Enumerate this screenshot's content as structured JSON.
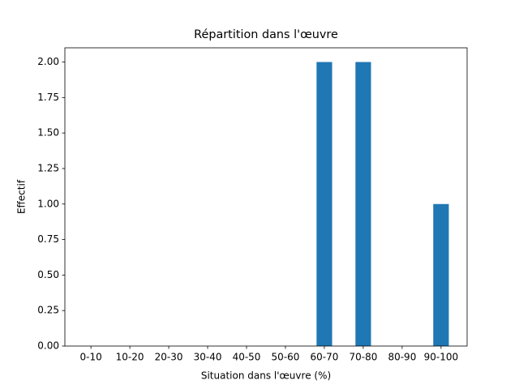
{
  "chart_data": {
    "type": "bar",
    "title": "Répartition dans l'œuvre",
    "xlabel": "Situation dans l'œuvre (%)",
    "ylabel": "Effectif",
    "categories": [
      "0-10",
      "10-20",
      "20-30",
      "30-40",
      "40-50",
      "50-60",
      "60-70",
      "70-80",
      "80-90",
      "90-100"
    ],
    "values": [
      0,
      0,
      0,
      0,
      0,
      0,
      2,
      2,
      0,
      1
    ],
    "color": "#1f77b4",
    "ylim": [
      0,
      2.1
    ],
    "yticks": [
      {
        "value": 0,
        "label": "0.00"
      },
      {
        "value": 0.25,
        "label": "0.25"
      },
      {
        "value": 0.5,
        "label": "0.50"
      },
      {
        "value": 0.75,
        "label": "0.75"
      },
      {
        "value": 1,
        "label": "1.00"
      },
      {
        "value": 1.25,
        "label": "1.25"
      },
      {
        "value": 1.5,
        "label": "1.50"
      },
      {
        "value": 1.75,
        "label": "1.75"
      },
      {
        "value": 2,
        "label": "2.00"
      }
    ],
    "grid": false
  }
}
